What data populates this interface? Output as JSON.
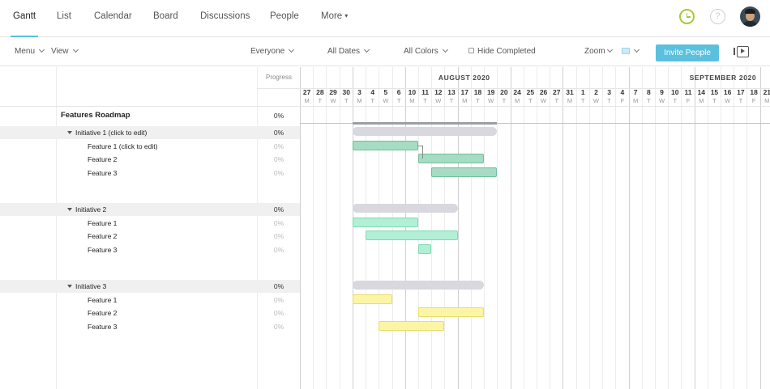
{
  "nav": {
    "tabs": [
      "Gantt",
      "List",
      "Calendar",
      "Board",
      "Discussions",
      "People",
      "More"
    ],
    "active": "Gantt"
  },
  "toolbar": {
    "menu": "Menu",
    "view": "View",
    "everyone": "Everyone",
    "all_dates": "All Dates",
    "all_colors": "All Colors",
    "hide_completed": "Hide Completed",
    "zoom": "Zoom",
    "invite": "Invite People"
  },
  "icons": {
    "clock": "clock-icon",
    "help": "help-icon",
    "help_glyph": "?",
    "present": "present-icon"
  },
  "colors": {
    "accent": "#5bc0de",
    "green": "#a6dcc3",
    "mint": "#b2f0d6",
    "yellow": "#fdf5a6",
    "summary": "#d8d8de"
  },
  "grid": {
    "progress_header": "Progress",
    "months": [
      {
        "label": "AUGUST 2020",
        "start_day_index": 4
      },
      {
        "label": "SEPTEMBER 2020",
        "start_day_index": 21
      }
    ],
    "days": [
      {
        "d": "27",
        "w": "M"
      },
      {
        "d": "28",
        "w": "T"
      },
      {
        "d": "29",
        "w": "W"
      },
      {
        "d": "30",
        "w": "T"
      },
      {
        "d": "3",
        "w": "M"
      },
      {
        "d": "4",
        "w": "T"
      },
      {
        "d": "5",
        "w": "W"
      },
      {
        "d": "6",
        "w": "T"
      },
      {
        "d": "10",
        "w": "M"
      },
      {
        "d": "11",
        "w": "T"
      },
      {
        "d": "12",
        "w": "W"
      },
      {
        "d": "13",
        "w": "T"
      },
      {
        "d": "17",
        "w": "M"
      },
      {
        "d": "18",
        "w": "T"
      },
      {
        "d": "19",
        "w": "W"
      },
      {
        "d": "20",
        "w": "T"
      },
      {
        "d": "24",
        "w": "M"
      },
      {
        "d": "25",
        "w": "T"
      },
      {
        "d": "26",
        "w": "W"
      },
      {
        "d": "27",
        "w": "T"
      },
      {
        "d": "31",
        "w": "M"
      },
      {
        "d": "1",
        "w": "T"
      },
      {
        "d": "2",
        "w": "W"
      },
      {
        "d": "3",
        "w": "T"
      },
      {
        "d": "4",
        "w": "F"
      },
      {
        "d": "7",
        "w": "M"
      },
      {
        "d": "8",
        "w": "T"
      },
      {
        "d": "9",
        "w": "W"
      },
      {
        "d": "10",
        "w": "T"
      },
      {
        "d": "11",
        "w": "F"
      },
      {
        "d": "14",
        "w": "M"
      },
      {
        "d": "15",
        "w": "T"
      },
      {
        "d": "16",
        "w": "W"
      },
      {
        "d": "17",
        "w": "T"
      },
      {
        "d": "18",
        "w": "F"
      },
      {
        "d": "21",
        "w": "M"
      }
    ]
  },
  "tasks": [
    {
      "name": "Features Roadmap",
      "level": 0,
      "progress": "0%",
      "bar": {
        "type": "project",
        "start": 4,
        "end": 15
      }
    },
    {
      "name": "Initiative 1 (click to edit)",
      "level": 1,
      "progress": "0%",
      "bar": {
        "type": "summary",
        "start": 4,
        "end": 15
      }
    },
    {
      "name": "Feature 1 (click to edit)",
      "level": 2,
      "progress": "0%",
      "bar": {
        "type": "green",
        "start": 4,
        "end": 9
      }
    },
    {
      "name": "Feature 2",
      "level": 2,
      "progress": "0%",
      "bar": {
        "type": "green",
        "start": 9,
        "end": 14
      }
    },
    {
      "name": "Feature 3",
      "level": 2,
      "progress": "0%",
      "bar": {
        "type": "green",
        "start": 10,
        "end": 15
      }
    },
    {
      "name": "",
      "level": -1
    },
    {
      "name": "Initiative 2",
      "level": 1,
      "progress": "0%",
      "bar": {
        "type": "summary",
        "start": 4,
        "end": 12
      }
    },
    {
      "name": "Feature 1",
      "level": 2,
      "progress": "0%",
      "bar": {
        "type": "mint",
        "start": 4,
        "end": 9
      }
    },
    {
      "name": "Feature 2",
      "level": 2,
      "progress": "0%",
      "bar": {
        "type": "mint",
        "start": 5,
        "end": 12
      }
    },
    {
      "name": "Feature 3",
      "level": 2,
      "progress": "0%",
      "bar": {
        "type": "mint",
        "start": 9,
        "end": 10
      }
    },
    {
      "name": "",
      "level": -1
    },
    {
      "name": "Initiative 3",
      "level": 1,
      "progress": "0%",
      "bar": {
        "type": "summary",
        "start": 4,
        "end": 14
      }
    },
    {
      "name": "Feature 1",
      "level": 2,
      "progress": "0%",
      "bar": {
        "type": "yellow",
        "start": 4,
        "end": 7
      }
    },
    {
      "name": "Feature 2",
      "level": 2,
      "progress": "0%",
      "bar": {
        "type": "yellow",
        "start": 9,
        "end": 14
      }
    },
    {
      "name": "Feature 3",
      "level": 2,
      "progress": "0%",
      "bar": {
        "type": "yellow",
        "start": 6,
        "end": 11
      }
    }
  ]
}
